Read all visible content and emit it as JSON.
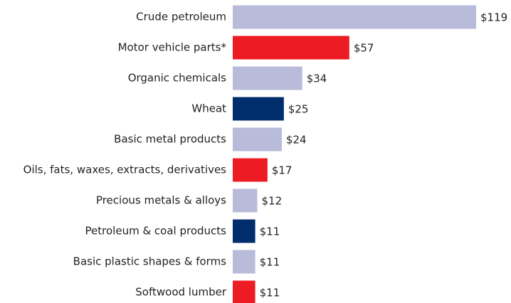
{
  "chart_data": {
    "type": "bar",
    "orientation": "horizontal",
    "categories": [
      "Crude petroleum",
      "Motor vehicle parts*",
      "Organic chemicals",
      "Wheat",
      "Basic metal products",
      "Oils, fats, waxes, extracts, derivatives",
      "Precious metals & alloys",
      "Petroleum & coal products",
      "Basic plastic shapes & forms",
      "Softwood lumber"
    ],
    "values": [
      119,
      57,
      34,
      25,
      24,
      17,
      12,
      11,
      11,
      11
    ],
    "value_labels": [
      "$119",
      "$57",
      "$34",
      "$25",
      "$24",
      "$17",
      "$12",
      "$11",
      "$11",
      "$11"
    ],
    "colors": [
      "#b8bbd9",
      "#ed1c24",
      "#b8bbd9",
      "#002d6b",
      "#b8bbd9",
      "#ed1c24",
      "#b8bbd9",
      "#002d6b",
      "#b8bbd9",
      "#ed1c24"
    ]
  }
}
